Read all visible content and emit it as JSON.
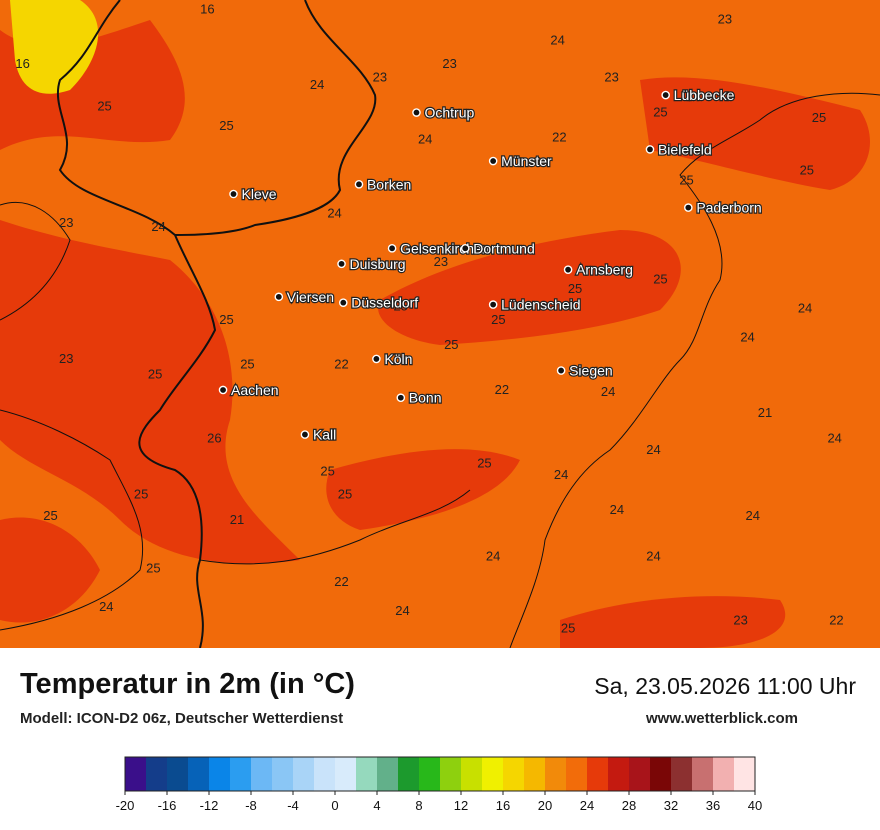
{
  "map": {
    "background_color": "#f16a0a",
    "cities": [
      {
        "name": "Ochtrup",
        "lon": 7.19,
        "lat": 52.21
      },
      {
        "name": "Münster",
        "lon": 7.63,
        "lat": 51.96
      },
      {
        "name": "Lübbecke",
        "lon": 8.62,
        "lat": 52.3
      },
      {
        "name": "Bielefeld",
        "lon": 8.53,
        "lat": 52.02
      },
      {
        "name": "Paderborn",
        "lon": 8.75,
        "lat": 51.72
      },
      {
        "name": "Borken",
        "lon": 6.86,
        "lat": 51.84
      },
      {
        "name": "Kleve",
        "lon": 6.14,
        "lat": 51.79
      },
      {
        "name": "Gelsenkirchen",
        "lon": 7.05,
        "lat": 51.51
      },
      {
        "name": "Dortmund",
        "lon": 7.47,
        "lat": 51.51
      },
      {
        "name": "Duisburg",
        "lon": 6.76,
        "lat": 51.43
      },
      {
        "name": "Arnsberg",
        "lon": 8.06,
        "lat": 51.4
      },
      {
        "name": "Viersen",
        "lon": 6.4,
        "lat": 51.26
      },
      {
        "name": "Düsseldorf",
        "lon": 6.77,
        "lat": 51.23
      },
      {
        "name": "Lüdenscheid",
        "lon": 7.63,
        "lat": 51.22
      },
      {
        "name": "Köln",
        "lon": 6.96,
        "lat": 50.94
      },
      {
        "name": "Siegen",
        "lon": 8.02,
        "lat": 50.88
      },
      {
        "name": "Aachen",
        "lon": 6.08,
        "lat": 50.78
      },
      {
        "name": "Bonn",
        "lon": 7.1,
        "lat": 50.74
      },
      {
        "name": "Kall",
        "lon": 6.55,
        "lat": 50.55
      }
    ],
    "labels": [
      {
        "t": "16",
        "lon": 5.99,
        "lat": 52.72
      },
      {
        "t": "16",
        "lon": 4.93,
        "lat": 52.44
      },
      {
        "t": "23",
        "lon": 8.96,
        "lat": 52.67
      },
      {
        "t": "24",
        "lon": 8.0,
        "lat": 52.56
      },
      {
        "t": "23",
        "lon": 7.38,
        "lat": 52.44
      },
      {
        "t": "23",
        "lon": 6.98,
        "lat": 52.37
      },
      {
        "t": "23",
        "lon": 8.31,
        "lat": 52.37
      },
      {
        "t": "24",
        "lon": 6.62,
        "lat": 52.33
      },
      {
        "t": "25",
        "lon": 5.4,
        "lat": 52.22
      },
      {
        "t": "25",
        "lon": 8.59,
        "lat": 52.19
      },
      {
        "t": "25",
        "lon": 9.5,
        "lat": 52.16
      },
      {
        "t": "25",
        "lon": 6.1,
        "lat": 52.12
      },
      {
        "t": "22",
        "lon": 8.01,
        "lat": 52.06
      },
      {
        "t": "24",
        "lon": 7.24,
        "lat": 52.05
      },
      {
        "t": "25",
        "lon": 8.74,
        "lat": 51.84
      },
      {
        "t": "25",
        "lon": 9.43,
        "lat": 51.89
      },
      {
        "t": "24",
        "lon": 6.72,
        "lat": 51.67
      },
      {
        "t": "23",
        "lon": 5.18,
        "lat": 51.62
      },
      {
        "t": "24",
        "lon": 5.71,
        "lat": 51.6
      },
      {
        "t": "23",
        "lon": 7.33,
        "lat": 51.42
      },
      {
        "t": "25",
        "lon": 8.59,
        "lat": 51.33
      },
      {
        "t": "25",
        "lon": 8.1,
        "lat": 51.28
      },
      {
        "t": "25",
        "lon": 7.1,
        "lat": 51.19
      },
      {
        "t": "24",
        "lon": 9.42,
        "lat": 51.18
      },
      {
        "t": "25",
        "lon": 6.1,
        "lat": 51.12
      },
      {
        "t": "25",
        "lon": 7.66,
        "lat": 51.12
      },
      {
        "t": "24",
        "lon": 9.09,
        "lat": 51.03
      },
      {
        "t": "25",
        "lon": 7.39,
        "lat": 50.99
      },
      {
        "t": "23",
        "lon": 5.18,
        "lat": 50.92
      },
      {
        "t": "25",
        "lon": 5.69,
        "lat": 50.84
      },
      {
        "t": "25",
        "lon": 6.22,
        "lat": 50.89
      },
      {
        "t": "22",
        "lon": 6.76,
        "lat": 50.89
      },
      {
        "t": "22",
        "lon": 7.68,
        "lat": 50.76
      },
      {
        "t": "24",
        "lon": 8.29,
        "lat": 50.75
      },
      {
        "t": "21",
        "lon": 9.19,
        "lat": 50.64
      },
      {
        "t": "26",
        "lon": 6.03,
        "lat": 50.51
      },
      {
        "t": "24",
        "lon": 9.59,
        "lat": 50.51
      },
      {
        "t": "24",
        "lon": 8.55,
        "lat": 50.45
      },
      {
        "t": "25",
        "lon": 7.58,
        "lat": 50.38
      },
      {
        "t": "25",
        "lon": 6.68,
        "lat": 50.34
      },
      {
        "t": "24",
        "lon": 8.02,
        "lat": 50.32
      },
      {
        "t": "25",
        "lon": 5.61,
        "lat": 50.22
      },
      {
        "t": "25",
        "lon": 6.78,
        "lat": 50.22
      },
      {
        "t": "24",
        "lon": 8.34,
        "lat": 50.14
      },
      {
        "t": "24",
        "lon": 9.12,
        "lat": 50.11
      },
      {
        "t": "25",
        "lon": 5.09,
        "lat": 50.11
      },
      {
        "t": "21",
        "lon": 6.16,
        "lat": 50.09
      },
      {
        "t": "24",
        "lon": 7.63,
        "lat": 49.9
      },
      {
        "t": "24",
        "lon": 8.55,
        "lat": 49.9
      },
      {
        "t": "25",
        "lon": 5.68,
        "lat": 49.84
      },
      {
        "t": "22",
        "lon": 6.76,
        "lat": 49.77
      },
      {
        "t": "24",
        "lon": 5.41,
        "lat": 49.64
      },
      {
        "t": "24",
        "lon": 7.11,
        "lat": 49.62
      },
      {
        "t": "23",
        "lon": 9.05,
        "lat": 49.57
      },
      {
        "t": "22",
        "lon": 9.6,
        "lat": 49.57
      },
      {
        "t": "25",
        "lon": 8.06,
        "lat": 49.53
      }
    ]
  },
  "footer": {
    "title": "Temperatur in 2m (in °C)",
    "model": "Modell: ICON-D2 06z, Deutscher Wetterdienst",
    "datetime": "Sa, 23.05.2026 11:00 Uhr",
    "website": "www.wetterblick.com"
  },
  "color_scale": {
    "min": -20,
    "max": 40,
    "step": 2,
    "tick_labels": [
      "-20",
      "-16",
      "-12",
      "-8",
      "-4",
      "0",
      "4",
      "8",
      "12",
      "16",
      "20",
      "24",
      "28",
      "32",
      "36",
      "40"
    ],
    "colors": [
      "#3a0f8a",
      "#143d8a",
      "#0a4b90",
      "#0662b8",
      "#0a85e8",
      "#2b9df0",
      "#6cb8f5",
      "#8ac6f5",
      "#a9d4f7",
      "#c9e3fa",
      "#d8ebfb",
      "#95d9bd",
      "#62b08a",
      "#1c9a2d",
      "#28b81a",
      "#8ed00e",
      "#c8e000",
      "#f0f000",
      "#f5d600",
      "#f5b800",
      "#f28a0a",
      "#f26c0a",
      "#e63a0a",
      "#c41a10",
      "#a8141a",
      "#7a0606",
      "#8c3030",
      "#c87070",
      "#f2b0b0",
      "#ffe4e4"
    ]
  }
}
